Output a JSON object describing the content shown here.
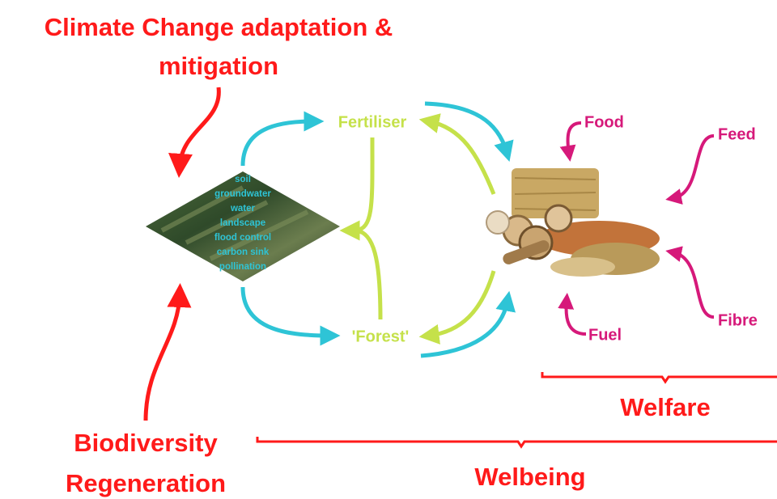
{
  "top_label": {
    "lines": [
      "Climate Change adaptation &",
      "mitigation"
    ]
  },
  "bottom_label": {
    "lines": [
      "Biodiversity",
      "Regeneration"
    ]
  },
  "land_services": [
    "soil",
    "groundwater",
    "water",
    "landscape",
    "flood control",
    "carbon sink",
    "pollination"
  ],
  "outputs": {
    "fertiliser": "Fertiliser",
    "forest": "'Forest'"
  },
  "products": {
    "food": "Food",
    "feed": "Feed",
    "fibre": "Fibre",
    "fuel": "Fuel"
  },
  "brackets": {
    "welfare": "Welfare",
    "welbeing": "Welbeing"
  }
}
